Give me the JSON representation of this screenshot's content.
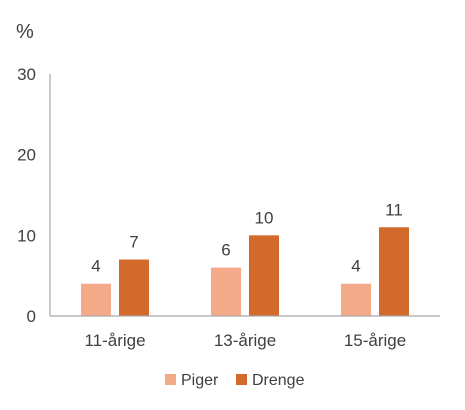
{
  "chart_data": {
    "type": "bar",
    "unit_label": "%",
    "categories": [
      "11-årige",
      "13-årige",
      "15-årige"
    ],
    "series": [
      {
        "name": "Piger",
        "color": "#f4a989",
        "values": [
          4,
          6,
          4
        ],
        "labels": [
          "4",
          "6",
          "4"
        ]
      },
      {
        "name": "Drenge",
        "color": "#d36a2c",
        "values": [
          7,
          10,
          11
        ],
        "labels": [
          "7",
          "10",
          "11"
        ]
      }
    ],
    "yticks": [
      0,
      10,
      20,
      30
    ],
    "ylim": [
      0,
      30
    ],
    "grid": false,
    "legend": "bottom"
  }
}
